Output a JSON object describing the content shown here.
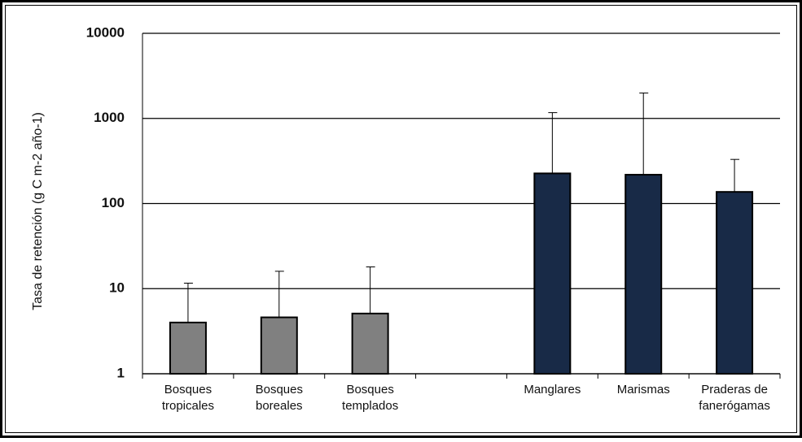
{
  "chart_data": {
    "type": "bar",
    "y_label": "Tasa de retención (g C m-2 año-1)",
    "categories": [
      [
        "Bosques",
        "tropicales"
      ],
      [
        "Bosques",
        "boreales"
      ],
      [
        "Bosques",
        "templados"
      ],
      null,
      [
        "Manglares"
      ],
      [
        "Marismas"
      ],
      [
        "Praderas de",
        "fanerógamas"
      ]
    ],
    "values": [
      4,
      4.6,
      5.1,
      null,
      226,
      218,
      137
    ],
    "errors": [
      7.6,
      11.4,
      12.9,
      null,
      944,
      1772,
      193
    ],
    "colors": [
      "#808080",
      "#808080",
      "#808080",
      null,
      "#182a47",
      "#182a47",
      "#182a47"
    ],
    "ylim": [
      1,
      10000
    ],
    "yticks": [
      1,
      10,
      100,
      1000,
      10000
    ],
    "log_scale": true,
    "grid": true
  }
}
